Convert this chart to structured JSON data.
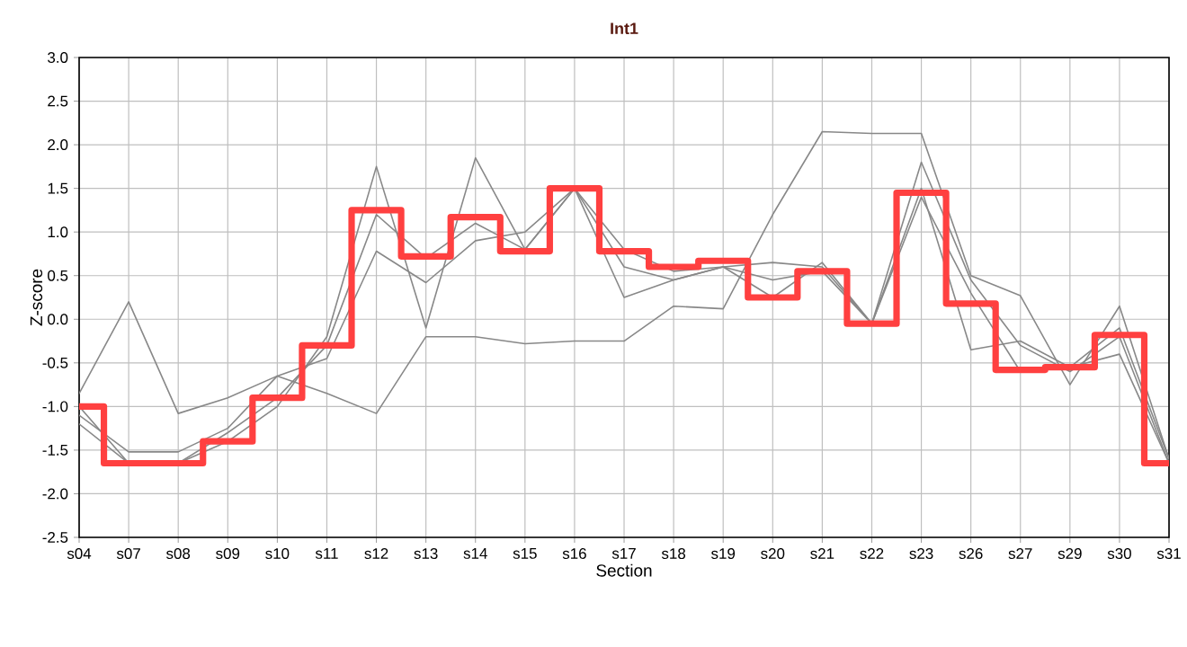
{
  "chart_data": {
    "type": "line",
    "title": "Int1",
    "xlabel": "Section",
    "ylabel": "Z-score",
    "categories": [
      "s04",
      "s07",
      "s08",
      "s09",
      "s10",
      "s11",
      "s12",
      "s13",
      "s14",
      "s15",
      "s16",
      "s17",
      "s18",
      "s19",
      "s20",
      "s21",
      "s22",
      "s23",
      "s26",
      "s27",
      "s29",
      "s30",
      "s31"
    ],
    "ylim": [
      -2.5,
      3.0
    ],
    "yticks": [
      {
        "value": -2.5,
        "label": "-2.5"
      },
      {
        "value": -2,
        "label": "-2.0"
      },
      {
        "value": -1.5,
        "label": "-1.5"
      },
      {
        "value": -1,
        "label": "-1.0"
      },
      {
        "value": -0.5,
        "label": "-0.5"
      },
      {
        "value": 0,
        "label": "0.0"
      },
      {
        "value": 0.5,
        "label": "0.5"
      },
      {
        "value": 1,
        "label": "1.0"
      },
      {
        "value": 1.5,
        "label": "1.5"
      },
      {
        "value": 2,
        "label": "2.0"
      },
      {
        "value": 2.5,
        "label": "2.5"
      },
      {
        "value": 3,
        "label": "3.0"
      }
    ],
    "grid": true,
    "marker": "none",
    "line_style": "solid",
    "series": [
      {
        "color": "#888888",
        "values": [
          -0.85,
          0.2,
          -1.08,
          -0.9,
          -0.65,
          -0.85,
          -1.08,
          -0.2,
          -0.2,
          -0.28,
          -0.25,
          -0.25,
          0.15,
          0.12,
          1.2,
          2.15,
          2.13,
          2.13,
          0.5,
          0.27,
          -0.75,
          0.15,
          -1.6
        ]
      },
      {
        "color": "#888888",
        "values": [
          -1.0,
          -1.65,
          -1.65,
          -1.4,
          -1.0,
          -0.2,
          1.75,
          -0.1,
          1.85,
          0.8,
          1.5,
          0.6,
          0.45,
          0.6,
          0.45,
          0.55,
          -0.05,
          1.8,
          0.45,
          -0.3,
          -0.6,
          -0.2,
          -1.65
        ]
      },
      {
        "color": "#888888",
        "values": [
          -1.1,
          -1.52,
          -1.52,
          -1.25,
          -0.65,
          -0.45,
          0.78,
          0.42,
          0.9,
          1.0,
          1.5,
          0.25,
          0.45,
          0.6,
          0.65,
          0.6,
          -0.05,
          1.5,
          -0.35,
          -0.25,
          -0.55,
          -0.4,
          -1.65
        ]
      },
      {
        "color": "#888888",
        "values": [
          -1.2,
          -1.65,
          -1.65,
          -1.3,
          -0.9,
          -0.3,
          1.2,
          0.7,
          1.1,
          0.8,
          1.5,
          0.8,
          0.55,
          0.6,
          0.25,
          0.65,
          -0.05,
          1.4,
          0.3,
          -0.6,
          -0.55,
          -0.1,
          -1.6
        ]
      },
      {
        "type": "step",
        "color": "#ff4040",
        "values": [
          -1.0,
          -1.65,
          -1.65,
          -1.4,
          -0.9,
          -0.3,
          1.25,
          0.72,
          1.17,
          0.78,
          1.5,
          0.78,
          0.6,
          0.67,
          0.25,
          0.55,
          -0.05,
          1.45,
          0.18,
          -0.58,
          -0.55,
          -0.18,
          -1.65
        ]
      }
    ]
  }
}
